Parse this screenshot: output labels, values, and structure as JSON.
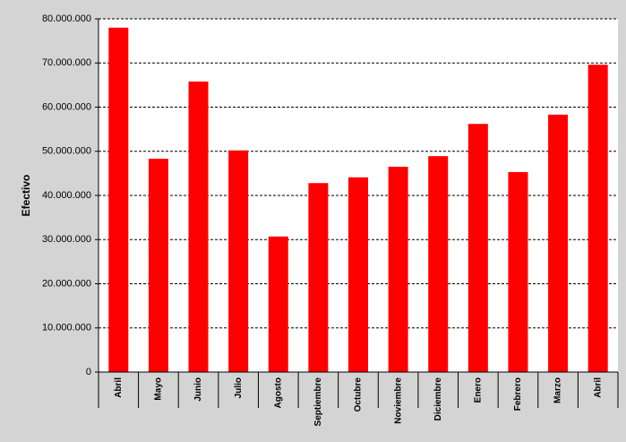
{
  "chart_data": {
    "type": "bar",
    "y_label": "Efectivo",
    "categories": [
      "Abril",
      "Mayo",
      "Junio",
      "Julio",
      "Agosto",
      "Septiembre",
      "Octubre",
      "Noviembre",
      "Diciembre",
      "Enero",
      "Febrero",
      "Marzo",
      "Abril"
    ],
    "values": [
      78000000,
      48300000,
      65800000,
      50200000,
      30700000,
      42800000,
      44100000,
      46500000,
      48900000,
      56200000,
      45300000,
      58300000,
      69600000
    ],
    "color": "#ff0000",
    "ylim": [
      0,
      80000000
    ],
    "yticks": [
      0,
      {
        "value": 10000000,
        "label": "10.000.000"
      },
      {
        "value": 20000000,
        "label": "20.000.000"
      },
      {
        "value": 30000000,
        "label": "30.000.000"
      },
      {
        "value": 40000000,
        "label": "40.000.000"
      },
      {
        "value": 50000000,
        "label": "50.000.000"
      },
      {
        "value": 60000000,
        "label": "60.000.000"
      },
      {
        "value": 70000000,
        "label": "70.000.000"
      },
      {
        "value": 80000000,
        "label": "80.000.000"
      }
    ],
    "grid": true
  }
}
